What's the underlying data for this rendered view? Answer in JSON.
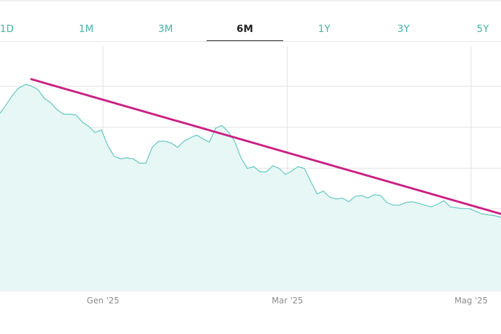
{
  "tabs": [
    {
      "label": "1D",
      "active": false
    },
    {
      "label": "1M",
      "active": false
    },
    {
      "label": "3M",
      "active": false
    },
    {
      "label": "6M",
      "active": true
    },
    {
      "label": "1Y",
      "active": false
    },
    {
      "label": "3Y",
      "active": false
    },
    {
      "label": "5Y",
      "active": false
    }
  ],
  "colors": {
    "line": "#5cc7c0",
    "area": "#e7f7f6",
    "trend": "#cc1f83",
    "grid": "#e2e2e2",
    "tab_inactive": "#3fb5a7",
    "tab_active": "#222222"
  },
  "chart_data": {
    "type": "area",
    "title": "",
    "xlabel": "",
    "ylabel": "",
    "grid": true,
    "x_tick_labels": [
      "Gen '25",
      "Mar '25",
      "Mag '25"
    ],
    "y_gridlines": 6,
    "series": [
      {
        "values": [
          50.3,
          51.3,
          52.4,
          53.2,
          53.6,
          53.4,
          53.0,
          52.0,
          51.5,
          50.7,
          50.2,
          50.2,
          50.1,
          49.3,
          48.8,
          48.1,
          48.4,
          46.6,
          45.4,
          45.1,
          45.2,
          45.1,
          44.6,
          44.6,
          46.4,
          47.1,
          47.1,
          46.9,
          46.4,
          47.1,
          47.5,
          47.8,
          47.4,
          47.0,
          48.6,
          48.9,
          48.2,
          47.1,
          45.2,
          44.0,
          44.2,
          43.6,
          43.6,
          44.3,
          44.0,
          43.3,
          43.7,
          44.2,
          44.0,
          42.5,
          41.1,
          41.4,
          40.7,
          40.5,
          40.6,
          40.2,
          40.8,
          40.9,
          40.6,
          41.0,
          40.9,
          40.1,
          39.8,
          39.8,
          40.1,
          40.2,
          40.0,
          39.8,
          39.6,
          39.9,
          40.3,
          39.6,
          39.5,
          39.4,
          39.4,
          39.1,
          38.8,
          38.7,
          38.6,
          38.4
        ]
      }
    ],
    "trendline": {
      "start": 54.2,
      "end": 38.8
    }
  }
}
